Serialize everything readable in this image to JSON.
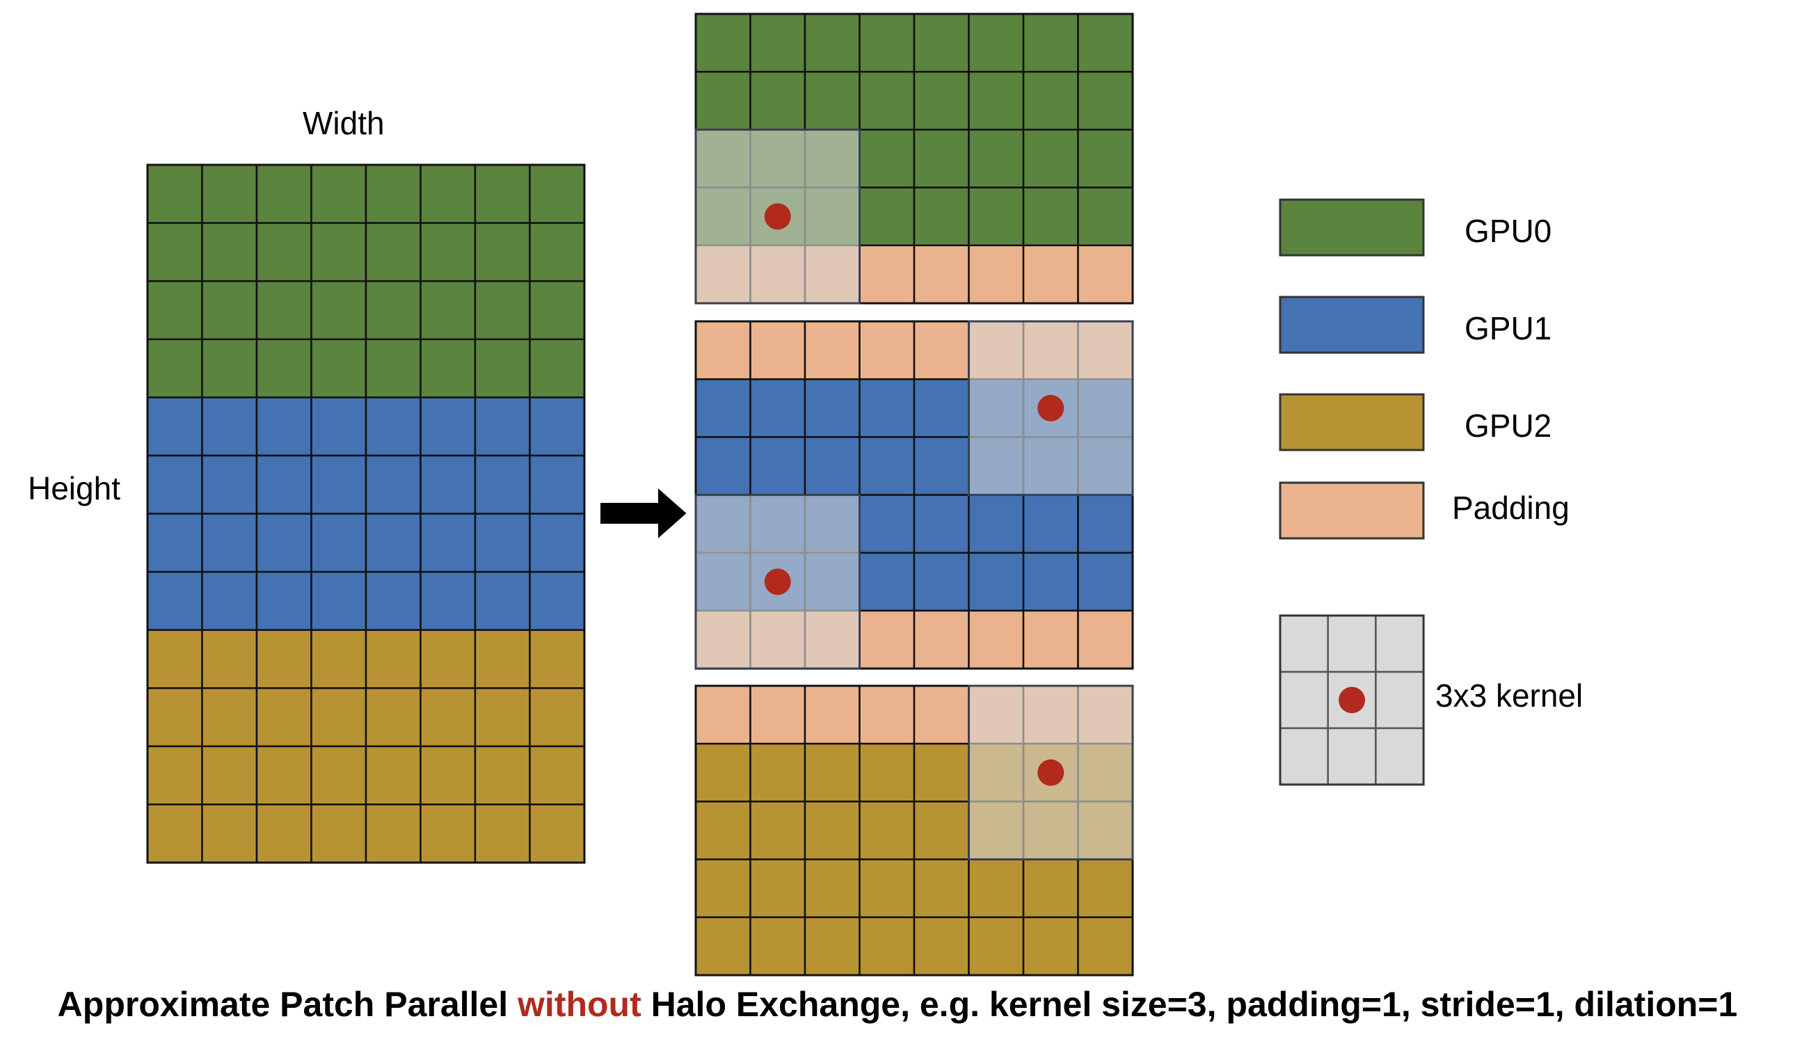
{
  "labels": {
    "width": "Width",
    "height": "Height"
  },
  "legend": {
    "gpu0": "GPU0",
    "gpu1": "GPU1",
    "gpu2": "GPU2",
    "padding": "Padding",
    "kernel": "3x3 kernel"
  },
  "caption": {
    "before": "Approximate Patch Parallel ",
    "highlight": "without",
    "after": " Halo Exchange, e.g. kernel size=3, padding=1, stride=1, dilation=1"
  },
  "colors": {
    "gpu0": "#5b843f",
    "gpu1": "#4472b2",
    "gpu2": "#b89334",
    "padding": "#ebb38d",
    "kernel": "#d9d9d9",
    "kernel_center": "#b22a1e",
    "highlight_text": "#b22a1e"
  },
  "input_grid": {
    "rows": 12,
    "cols": 8,
    "rows_per_gpu": 4
  },
  "patches": [
    {
      "gpu": "gpu0",
      "rows": [
        "g",
        "g",
        "g",
        "g",
        "p"
      ],
      "kernel": {
        "top_row": 2,
        "left_col": 0
      }
    },
    {
      "gpu": "gpu1",
      "rows": [
        "p",
        "g",
        "g",
        "g",
        "g",
        "p"
      ],
      "kernels": [
        {
          "top_row": 0,
          "left_col": 5
        },
        {
          "top_row": 3,
          "left_col": 0
        }
      ]
    },
    {
      "gpu": "gpu2",
      "rows": [
        "p",
        "g",
        "g",
        "g",
        "g"
      ],
      "kernel": {
        "top_row": 0,
        "left_col": 5
      }
    }
  ]
}
